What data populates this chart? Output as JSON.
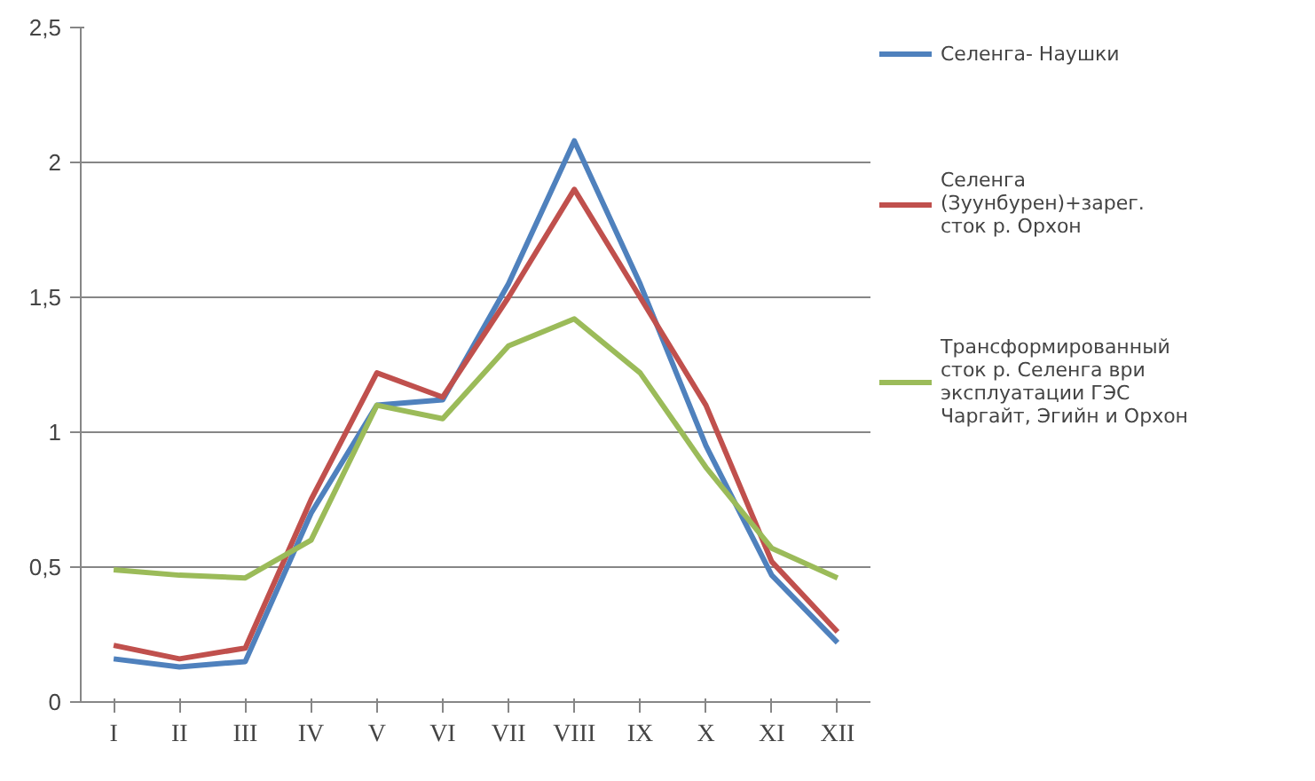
{
  "chart_data": {
    "type": "line",
    "categories": [
      "I",
      "II",
      "III",
      "IV",
      "V",
      "VI",
      "VII",
      "VIII",
      "IX",
      "X",
      "XI",
      "XII"
    ],
    "series": [
      {
        "name": "Селенга- Наушки",
        "color": "#4f81bd",
        "values": [
          0.16,
          0.13,
          0.15,
          0.7,
          1.1,
          1.12,
          1.55,
          2.08,
          1.55,
          0.95,
          0.47,
          0.22
        ]
      },
      {
        "name": "Селенга (Зуунбурен)+зарег. сток р. Орхон",
        "color": "#c0504d",
        "values": [
          0.21,
          0.16,
          0.2,
          0.75,
          1.22,
          1.13,
          1.5,
          1.9,
          1.5,
          1.1,
          0.52,
          0.26
        ]
      },
      {
        "name": "Трансформированный сток р. Селенга ври эксплуатации ГЭС Чаргайт, Эгийн и Орхон",
        "color": "#9bbb59",
        "values": [
          0.49,
          0.47,
          0.46,
          0.6,
          1.1,
          1.05,
          1.32,
          1.42,
          1.22,
          0.87,
          0.57,
          0.46
        ]
      }
    ],
    "ylim": [
      0,
      2.5
    ],
    "yticks": [
      0,
      {
        "value": 0.5,
        "label": "0,5"
      },
      1,
      {
        "value": 1.5,
        "label": "1,5"
      },
      2,
      {
        "value": 2.5,
        "label": "2,5"
      }
    ],
    "grid": "y",
    "legend": "right",
    "marker": "none",
    "line_style": "solid"
  }
}
